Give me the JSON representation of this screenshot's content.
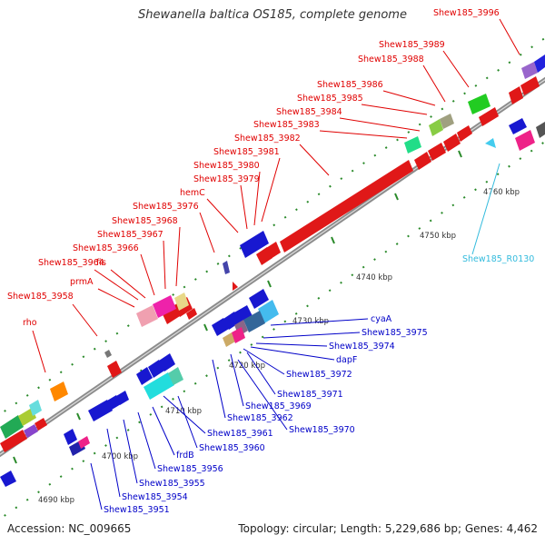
{
  "title": "Shewanella baltica OS185, complete genome",
  "accession": "Accession: NC_009665",
  "summary": "Topology: circular; Length: 5,229,686 bp; Genes: 4,462",
  "colors": {
    "label_top": "#e00000",
    "label_bottom": "#0000c8",
    "label_rna": "#33bbdd",
    "backbone": "#9a9a9a",
    "tick": "#2a8a2a"
  },
  "ticks": [
    {
      "label": "4690 kbp"
    },
    {
      "label": "4700 kbp"
    },
    {
      "label": "4710 kbp"
    },
    {
      "label": "4720 kbp"
    },
    {
      "label": "4730 kbp"
    },
    {
      "label": "4740 kbp"
    },
    {
      "label": "4750 kbp"
    },
    {
      "label": "4760 kbp"
    }
  ],
  "labels_top": [
    "rho",
    "Shew185_3958",
    "prmA",
    "Shew185_3964",
    "fis",
    "Shew185_3966",
    "Shew185_3967",
    "Shew185_3968",
    "Shew185_3976",
    "hemC",
    "Shew185_3979",
    "Shew185_3980",
    "Shew185_3981",
    "Shew185_3982",
    "Shew185_3983",
    "Shew185_3984",
    "Shew185_3985",
    "Shew185_3986",
    "Shew185_3988",
    "Shew185_3989",
    "Shew185_3996"
  ],
  "labels_bottom": [
    "cyaA",
    "Shew185_3975",
    "Shew185_3974",
    "dapF",
    "Shew185_3972",
    "Shew185_3971",
    "Shew185_3969",
    "Shew185_3962",
    "Shew185_3970",
    "Shew185_3961",
    "Shew185_3960",
    "frdB",
    "Shew185_3956",
    "Shew185_3955",
    "Shew185_3954",
    "Shew185_3951"
  ],
  "labels_rna": [
    "Shew185_R0130"
  ]
}
